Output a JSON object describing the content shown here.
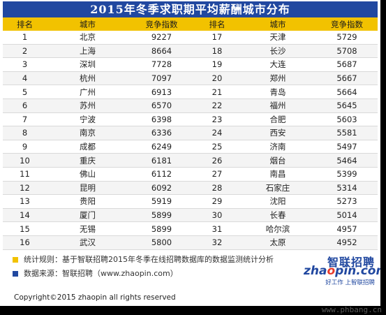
{
  "title": "2015年冬季求职期平均薪酬城市分布",
  "columns": [
    "排名",
    "城市",
    "竞争指数",
    "排名",
    "城市",
    "竞争指数"
  ],
  "rows": [
    [
      "1",
      "北京",
      "9227",
      "17",
      "天津",
      "5729"
    ],
    [
      "2",
      "上海",
      "8664",
      "18",
      "长沙",
      "5708"
    ],
    [
      "3",
      "深圳",
      "7728",
      "19",
      "大连",
      "5687"
    ],
    [
      "4",
      "杭州",
      "7097",
      "20",
      "郑州",
      "5667"
    ],
    [
      "5",
      "广州",
      "6913",
      "21",
      "青岛",
      "5664"
    ],
    [
      "6",
      "苏州",
      "6570",
      "22",
      "福州",
      "5645"
    ],
    [
      "7",
      "宁波",
      "6398",
      "23",
      "合肥",
      "5603"
    ],
    [
      "8",
      "南京",
      "6336",
      "24",
      "西安",
      "5581"
    ],
    [
      "9",
      "成都",
      "6249",
      "25",
      "济南",
      "5497"
    ],
    [
      "10",
      "重庆",
      "6181",
      "26",
      "烟台",
      "5464"
    ],
    [
      "11",
      "佛山",
      "6112",
      "27",
      "南昌",
      "5399"
    ],
    [
      "12",
      "昆明",
      "6092",
      "28",
      "石家庄",
      "5314"
    ],
    [
      "13",
      "贵阳",
      "5919",
      "29",
      "沈阳",
      "5273"
    ],
    [
      "14",
      "厦门",
      "5899",
      "30",
      "长春",
      "5014"
    ],
    [
      "15",
      "无锡",
      "5899",
      "31",
      "哈尔滨",
      "4957"
    ],
    [
      "16",
      "武汉",
      "5800",
      "32",
      "太原",
      "4952"
    ]
  ],
  "notes": {
    "rule": "统计规则：基于智联招聘2015年冬季在线招聘数据库的数据监测统计分析",
    "source": "数据来源：智联招聘（www.zhaopin.com）"
  },
  "logo": {
    "cn": "智联招聘",
    "en_pre": "zha",
    "en_o": "o",
    "en_post": "pin.com",
    "slogan": "好工作 上智联招聘"
  },
  "copyright": "Copyright©2015 zhaopin all rights reserved",
  "watermark": "www.phbang.cn",
  "colors": {
    "title_bg": "#2148a0",
    "header_bg": "#f2c200",
    "stripe": "#f4f4f4"
  }
}
